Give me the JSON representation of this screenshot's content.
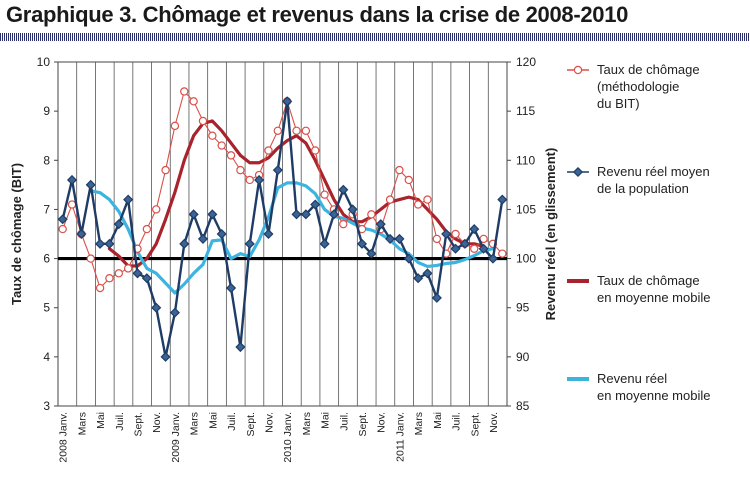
{
  "title": "Graphique 3. Chômage et revenus dans la crise de 2008-2010",
  "chart_data": {
    "type": "line",
    "title": "Graphique 3. Chômage et revenus dans la crise de 2008-2010",
    "ylabel_left": "Taux de chômage (BIT)",
    "ylabel_right": "Revenu réel (en glissement)",
    "ylim_left": [
      3,
      10
    ],
    "ylim_right": [
      85,
      120
    ],
    "yticks_left": [
      "3",
      "4",
      "5",
      "6",
      "7",
      "8",
      "9",
      "10"
    ],
    "yticks_right": [
      "85",
      "90",
      "95",
      "100",
      "105",
      "110",
      "115",
      "120"
    ],
    "grid": "vertical",
    "reference_line": {
      "axis": "left",
      "value": 6
    },
    "x_tick_labels": [
      "2008 Janv.",
      "Mars",
      "Mai",
      "Juil.",
      "Sept.",
      "Nov.",
      "2009 Janv.",
      "Mars",
      "Mai",
      "Juil.",
      "Sept.",
      "Nov.",
      "2010 Janv.",
      "Mars",
      "Mai",
      "Juil.",
      "Sept.",
      "Nov.",
      "2011 Janv.",
      "Mars",
      "Mai",
      "Juil.",
      "Sept.",
      "Nov."
    ],
    "x_count": 48,
    "series": [
      {
        "name": "Taux de chômage (méthodologie du BIT)",
        "axis": "left",
        "style": "line-open-circle",
        "color": "#d9504a",
        "values": [
          6.6,
          7.1,
          6.5,
          6.0,
          5.4,
          5.6,
          5.7,
          5.8,
          6.2,
          6.6,
          7.0,
          7.8,
          8.7,
          9.4,
          9.2,
          8.8,
          8.5,
          8.3,
          8.1,
          7.8,
          7.6,
          7.7,
          8.2,
          8.6,
          9.2,
          8.6,
          8.6,
          8.2,
          7.3,
          7.0,
          6.7,
          6.9,
          6.6,
          6.9,
          6.6,
          7.2,
          7.8,
          7.6,
          7.1,
          7.2,
          6.4,
          6.1,
          6.5,
          6.3,
          6.2,
          6.4,
          6.3,
          6.1
        ]
      },
      {
        "name": "Revenu réel moyen de la population",
        "axis": "right",
        "style": "line-diamond",
        "color": "#1f3c66",
        "values": [
          104.0,
          108.0,
          102.5,
          107.5,
          101.5,
          101.5,
          103.5,
          106.0,
          98.5,
          98.0,
          95.0,
          90.0,
          94.5,
          101.5,
          104.5,
          102.0,
          104.5,
          102.5,
          97.0,
          91.0,
          101.5,
          108.0,
          102.5,
          109.0,
          116.0,
          104.5,
          104.5,
          105.5,
          101.5,
          104.5,
          107.0,
          105.0,
          101.5,
          100.5,
          103.5,
          102.0,
          102.0,
          100.0,
          98.0,
          98.5,
          96.0,
          102.5,
          101.0,
          101.5,
          103.0,
          101.0,
          100.0,
          106.0
        ]
      },
      {
        "name": "Taux de chômage en moyenne mobile",
        "axis": "left",
        "style": "line",
        "color": "#a8232b",
        "values": [
          null,
          null,
          null,
          null,
          null,
          6.2,
          6.05,
          5.85,
          5.85,
          6.0,
          6.3,
          6.8,
          7.35,
          8.0,
          8.5,
          8.75,
          8.8,
          8.6,
          8.35,
          8.1,
          7.95,
          7.95,
          8.05,
          8.25,
          8.4,
          8.5,
          8.35,
          8.0,
          7.6,
          7.2,
          6.9,
          6.75,
          6.75,
          6.85,
          7.0,
          7.15,
          7.2,
          7.25,
          7.2,
          7.0,
          6.8,
          6.55,
          6.4,
          6.3,
          6.3,
          6.25,
          null,
          null
        ]
      },
      {
        "name": "Revenu réel en moyenne mobile",
        "axis": "right",
        "style": "line",
        "color": "#3db4e0",
        "values": [
          null,
          null,
          null,
          106.9,
          106.7,
          106.0,
          104.8,
          103.0,
          100.7,
          99.0,
          98.5,
          97.5,
          96.5,
          97.4,
          98.5,
          99.4,
          101.8,
          101.9,
          100.0,
          100.5,
          100.2,
          101.9,
          104.2,
          107.2,
          107.7,
          107.7,
          107.4,
          106.6,
          105.0,
          104.3,
          104.1,
          103.6,
          103.1,
          102.9,
          102.5,
          101.9,
          101.0,
          100.5,
          99.6,
          99.2,
          99.3,
          99.5,
          99.6,
          99.9,
          100.3,
          100.8,
          101.0,
          null
        ]
      }
    ],
    "legend": {
      "position": "right",
      "entries": [
        {
          "label": "Taux de chômage (méthodologie du BIT)",
          "lines": [
            "Taux de chômage",
            "(méthodologie",
            "du BIT)"
          ],
          "color": "#d9504a",
          "marker": "open-circle"
        },
        {
          "label": "Revenu réel moyen de la population",
          "lines": [
            "Revenu réel moyen",
            "de la population"
          ],
          "color": "#1f3c66",
          "marker": "diamond"
        },
        {
          "label": "Taux de chômage en moyenne mobile",
          "lines": [
            "Taux de chômage",
            "en moyenne mobile"
          ],
          "color": "#a8232b",
          "marker": "none"
        },
        {
          "label": "Revenu réel en moyenne mobile",
          "lines": [
            "Revenu réel",
            "en moyenne mobile"
          ],
          "color": "#3db4e0",
          "marker": "none"
        }
      ]
    }
  }
}
